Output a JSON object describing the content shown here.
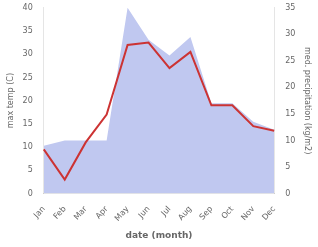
{
  "chart_data": {
    "type": "line",
    "categories": [
      "Jan",
      "Feb",
      "Mar",
      "Apr",
      "May",
      "Jun",
      "Jul",
      "Aug",
      "Sep",
      "Oct",
      "Nov",
      "Dec"
    ],
    "series": [
      {
        "type": "area",
        "axis": "y2",
        "color": "#c0c8f0",
        "values": [
          9.0,
          10.0,
          10.0,
          10.0,
          35.0,
          29.0,
          26.0,
          29.5,
          17.0,
          17.0,
          13.5,
          12.0
        ]
      },
      {
        "type": "line",
        "color": "#cc3333",
        "values": [
          9.5,
          3.0,
          11.0,
          17.0,
          32.0,
          32.5,
          27.0,
          30.5,
          19.0,
          19.0,
          14.5,
          13.5
        ]
      }
    ],
    "xlabel": "date (month)",
    "ylabel": "max temp (C)",
    "y2label": "med. precipitation (kg/m2)",
    "ylim": [
      0,
      40
    ],
    "yticks": [
      0,
      5,
      10,
      15,
      20,
      25,
      30,
      35,
      40
    ],
    "y2lim": [
      0,
      35
    ],
    "y2ticks": [
      0,
      5,
      10,
      15,
      20,
      25,
      30,
      35
    ],
    "grid": false
  }
}
